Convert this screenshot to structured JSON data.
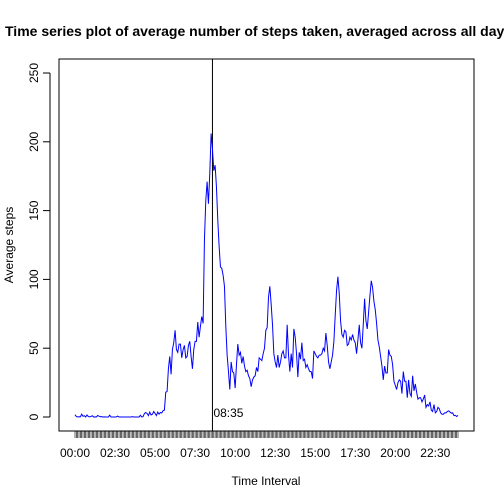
{
  "chart_data": {
    "type": "line",
    "title": "Time series plot of average number of steps taken, averaged across all days",
    "xlabel": "Time Interval",
    "ylabel": "Average steps",
    "ylim": [
      0,
      250
    ],
    "yticks": [
      0,
      50,
      100,
      150,
      200,
      250
    ],
    "xtick_labels": [
      "00:00",
      "02:30",
      "05:00",
      "07:30",
      "10:00",
      "12:30",
      "15:00",
      "17:30",
      "20:00",
      "22:30"
    ],
    "xtick_every": 30,
    "interval_minutes": 5,
    "color": "#0000ff",
    "vline": {
      "x": "08:35",
      "label": "08:35"
    },
    "series": [
      {
        "x": [
          "00:00",
          "00:05",
          "00:10",
          "00:15",
          "00:20",
          "00:25",
          "00:30",
          "00:35",
          "00:40",
          "00:45",
          "00:50",
          "00:55",
          "01:00",
          "01:05",
          "01:10",
          "01:15",
          "01:20",
          "01:25",
          "01:30",
          "01:35",
          "01:40",
          "01:45",
          "01:50",
          "01:55",
          "02:00",
          "02:05",
          "02:10",
          "02:15",
          "02:20",
          "02:25",
          "02:30",
          "02:35",
          "02:40",
          "02:45",
          "02:50",
          "02:55",
          "03:00",
          "03:05",
          "03:10",
          "03:15",
          "03:20",
          "03:25",
          "03:30",
          "03:35",
          "03:40",
          "03:45",
          "03:50",
          "03:55",
          "04:00",
          "04:05",
          "04:10",
          "04:15",
          "04:20",
          "04:25",
          "04:30",
          "04:35",
          "04:40",
          "04:45",
          "04:50",
          "04:55",
          "05:00",
          "05:05",
          "05:10",
          "05:15",
          "05:20",
          "05:25",
          "05:30",
          "05:35",
          "05:40",
          "05:45",
          "05:50",
          "05:55",
          "06:00",
          "06:05",
          "06:10",
          "06:15",
          "06:20",
          "06:25",
          "06:30",
          "06:35",
          "06:40",
          "06:45",
          "06:50",
          "06:55",
          "07:00",
          "07:05",
          "07:10",
          "07:15",
          "07:20",
          "07:25",
          "07:30",
          "07:35",
          "07:40",
          "07:45",
          "07:50",
          "07:55",
          "08:00",
          "08:05",
          "08:10",
          "08:15",
          "08:20",
          "08:25",
          "08:30",
          "08:35",
          "08:40",
          "08:45",
          "08:50",
          "08:55",
          "09:00",
          "09:05",
          "09:10",
          "09:15",
          "09:20",
          "09:25",
          "09:30",
          "09:35",
          "09:40",
          "09:45",
          "09:50",
          "09:55",
          "10:00",
          "10:05",
          "10:10",
          "10:15",
          "10:20",
          "10:25",
          "10:30",
          "10:35",
          "10:40",
          "10:45",
          "10:50",
          "10:55",
          "11:00",
          "11:05",
          "11:10",
          "11:15",
          "11:20",
          "11:25",
          "11:30",
          "11:35",
          "11:40",
          "11:45",
          "11:50",
          "11:55",
          "12:00",
          "12:05",
          "12:10",
          "12:15",
          "12:20",
          "12:25",
          "12:30",
          "12:35",
          "12:40",
          "12:45",
          "12:50",
          "12:55",
          "13:00",
          "13:05",
          "13:10",
          "13:15",
          "13:20",
          "13:25",
          "13:30",
          "13:35",
          "13:40",
          "13:45",
          "13:50",
          "13:55",
          "14:00",
          "14:05",
          "14:10",
          "14:15",
          "14:20",
          "14:25",
          "14:30",
          "14:35",
          "14:40",
          "14:45",
          "14:50",
          "14:55",
          "15:00",
          "15:05",
          "15:10",
          "15:15",
          "15:20",
          "15:25",
          "15:30",
          "15:35",
          "15:40",
          "15:45",
          "15:50",
          "15:55",
          "16:00",
          "16:05",
          "16:10",
          "16:15",
          "16:20",
          "16:25",
          "16:30",
          "16:35",
          "16:40",
          "16:45",
          "16:50",
          "16:55",
          "17:00",
          "17:05",
          "17:10",
          "17:15",
          "17:20",
          "17:25",
          "17:30",
          "17:35",
          "17:40",
          "17:45",
          "17:50",
          "17:55",
          "18:00",
          "18:05",
          "18:10",
          "18:15",
          "18:20",
          "18:25",
          "18:30",
          "18:35",
          "18:40",
          "18:45",
          "18:50",
          "18:55",
          "19:00",
          "19:05",
          "19:10",
          "19:15",
          "19:20",
          "19:25",
          "19:30",
          "19:35",
          "19:40",
          "19:45",
          "19:50",
          "19:55",
          "20:00",
          "20:05",
          "20:10",
          "20:15",
          "20:20",
          "20:25",
          "20:30",
          "20:35",
          "20:40",
          "20:45",
          "20:50",
          "20:55",
          "21:00",
          "21:05",
          "21:10",
          "21:15",
          "21:20",
          "21:25",
          "21:30",
          "21:35",
          "21:40",
          "21:45",
          "21:50",
          "21:55",
          "22:00",
          "22:05",
          "22:10",
          "22:15",
          "22:20",
          "22:25",
          "22:30",
          "22:35",
          "22:40",
          "22:45",
          "22:50",
          "22:55",
          "23:00",
          "23:05",
          "23:10",
          "23:15",
          "23:20",
          "23:25",
          "23:30",
          "23:35",
          "23:40",
          "23:45",
          "23:50",
          "23:55"
        ],
        "y": [
          1.7,
          0.3,
          0.1,
          0.2,
          0.1,
          2.1,
          0.5,
          0.9,
          0.0,
          1.5,
          0.3,
          0.1,
          0.4,
          0.9,
          0.0,
          0.1,
          0.0,
          1.1,
          0.6,
          0.2,
          0.3,
          0.0,
          0.1,
          0.0,
          0.0,
          0.0,
          1.4,
          0.0,
          0.0,
          0.0,
          0.0,
          0.1,
          0.7,
          0.0,
          0.0,
          0.0,
          0.0,
          0.0,
          0.0,
          0.0,
          0.0,
          0.0,
          0.0,
          0.3,
          0.0,
          0.0,
          0.0,
          0.0,
          0.0,
          1.2,
          0.0,
          0.2,
          2.5,
          3.3,
          2.6,
          1.0,
          3.5,
          1.5,
          2.0,
          4.0,
          2.6,
          1.0,
          3.6,
          2.1,
          3.3,
          2.9,
          4.6,
          5.0,
          18.0,
          18.5,
          35.0,
          44.0,
          31.0,
          49.0,
          54.0,
          63.0,
          49.0,
          47.0,
          53.0,
          53.0,
          43.0,
          49.0,
          52.0,
          43.0,
          44.0,
          52.0,
          55.0,
          44.0,
          35.0,
          49.0,
          55.0,
          55.0,
          69.0,
          58.0,
          66.0,
          73.0,
          68.0,
          129.0,
          157.0,
          171.0,
          155.0,
          177.0,
          206.0,
          195.0,
          179.0,
          183.0,
          167.0,
          143.0,
          124.0,
          109.0,
          108.0,
          103.0,
          95.0,
          66.0,
          45.0,
          33.0,
          20.0,
          40.0,
          33.0,
          32.0,
          21.0,
          38.0,
          53.0,
          45.0,
          47.0,
          39.0,
          44.0,
          37.0,
          33.0,
          34.0,
          30.0,
          28.0,
          22.0,
          27.0,
          29.0,
          30.0,
          36.0,
          33.0,
          43.0,
          42.0,
          41.0,
          46.0,
          50.0,
          63.0,
          65.0,
          87.0,
          95.0,
          82.0,
          67.0,
          46.0,
          40.0,
          36.0,
          45.0,
          36.0,
          40.0,
          46.0,
          48.0,
          43.0,
          43.0,
          67.0,
          45.0,
          33.0,
          46.0,
          36.0,
          64.0,
          58.0,
          46.0,
          29.0,
          47.0,
          42.0,
          54.0,
          41.0,
          42.0,
          36.0,
          38.0,
          35.0,
          33.0,
          33.0,
          28.0,
          48.0,
          46.0,
          44.0,
          43.0,
          45.0,
          45.0,
          46.0,
          50.0,
          48.0,
          61.0,
          52.0,
          40.0,
          35.0,
          40.0,
          45.0,
          55.0,
          74.0,
          92.0,
          102.0,
          90.0,
          70.0,
          60.0,
          58.0,
          63.0,
          62.0,
          52.0,
          53.0,
          58.0,
          56.0,
          60.0,
          56.0,
          54.0,
          46.0,
          56.0,
          67.0,
          54.0,
          50.0,
          67.0,
          86.0,
          70.0,
          64.0,
          76.0,
          88.0,
          99.0,
          94.0,
          84.0,
          78.0,
          68.0,
          56.0,
          51.0,
          44.0,
          37.0,
          27.0,
          37.0,
          32.0,
          32.0,
          49.0,
          45.0,
          44.0,
          38.0,
          26.0,
          23.0,
          20.0,
          25.0,
          27.0,
          26.0,
          17.0,
          33.0,
          26.0,
          26.0,
          14.0,
          27.0,
          17.0,
          15.0,
          30.0,
          19.0,
          24.0,
          18.0,
          13.0,
          14.0,
          14.0,
          11.0,
          13.0,
          16.0,
          7.0,
          9.0,
          8.0,
          11.0,
          5.0,
          4.0,
          9.0,
          3.0,
          4.0,
          7.0,
          6.0,
          3.0,
          2.0,
          2.0,
          3.0,
          3.0,
          4.0,
          4.5,
          3.6,
          2.8,
          3.0,
          1.0,
          1.2,
          0.4,
          1.2
        ]
      }
    ]
  }
}
